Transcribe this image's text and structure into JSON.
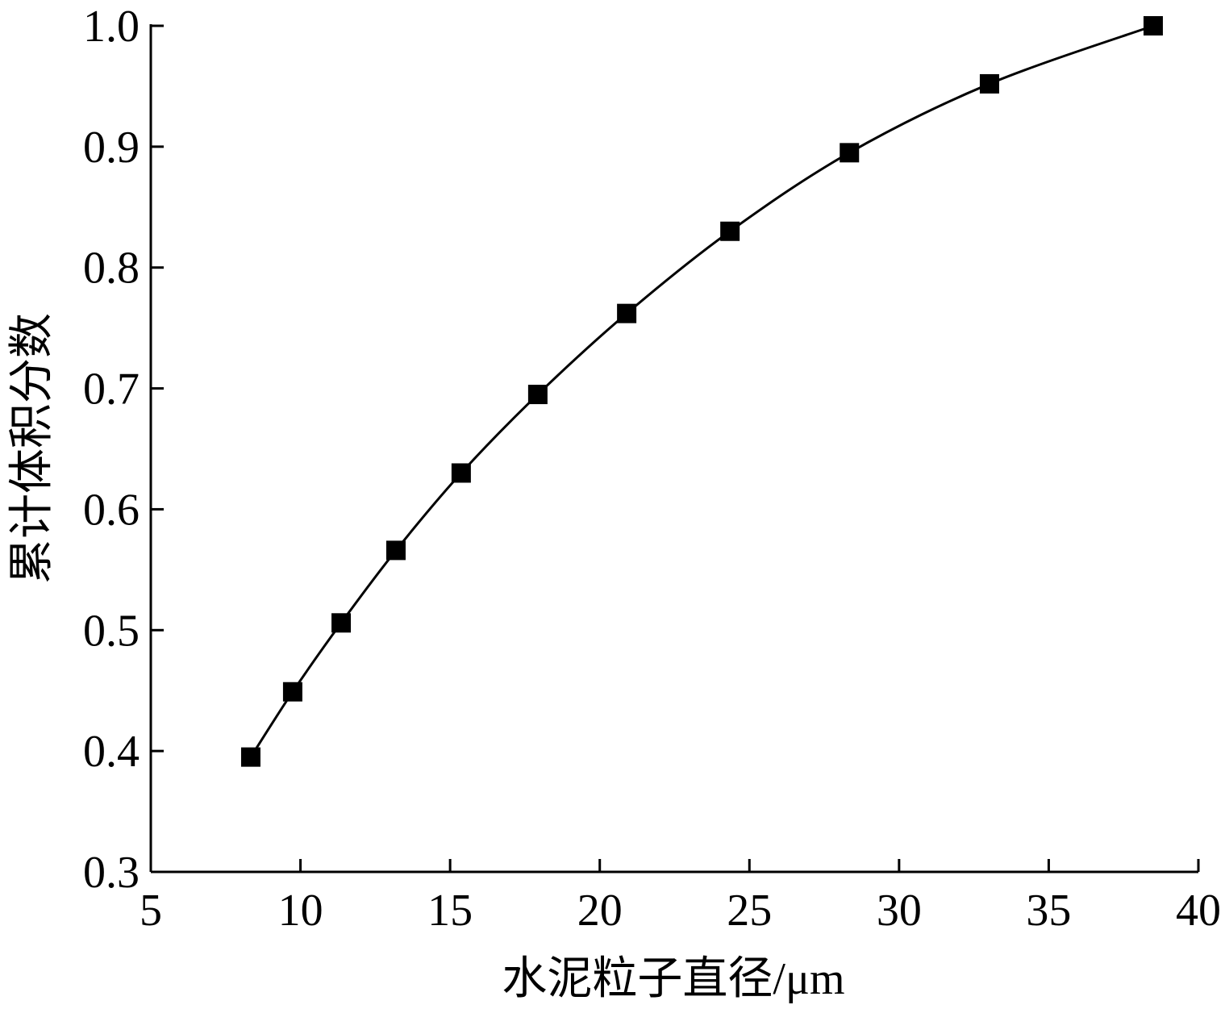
{
  "chart_data": {
    "type": "line",
    "x_label": "水泥粒子直径/μm",
    "y_label": "累计体积分数",
    "x": [
      8.34,
      9.74,
      11.36,
      13.19,
      15.37,
      17.93,
      20.9,
      24.35,
      28.34,
      33.02,
      38.49
    ],
    "series": [
      {
        "color": "#000000",
        "marker": "square",
        "values": [
          0.395,
          0.449,
          0.506,
          0.566,
          0.63,
          0.695,
          0.762,
          0.83,
          0.895,
          0.952,
          1.0
        ]
      }
    ],
    "xlim": [
      5,
      40
    ],
    "xticks": [
      5,
      10,
      15,
      20,
      25,
      30,
      35,
      40
    ],
    "ylim": [
      0.3,
      1.0
    ],
    "yticks": [
      0.3,
      0.4,
      0.5,
      0.6,
      0.7,
      0.8,
      0.9,
      {
        "value": 1.0,
        "label": "1.0"
      }
    ],
    "grid": false
  }
}
